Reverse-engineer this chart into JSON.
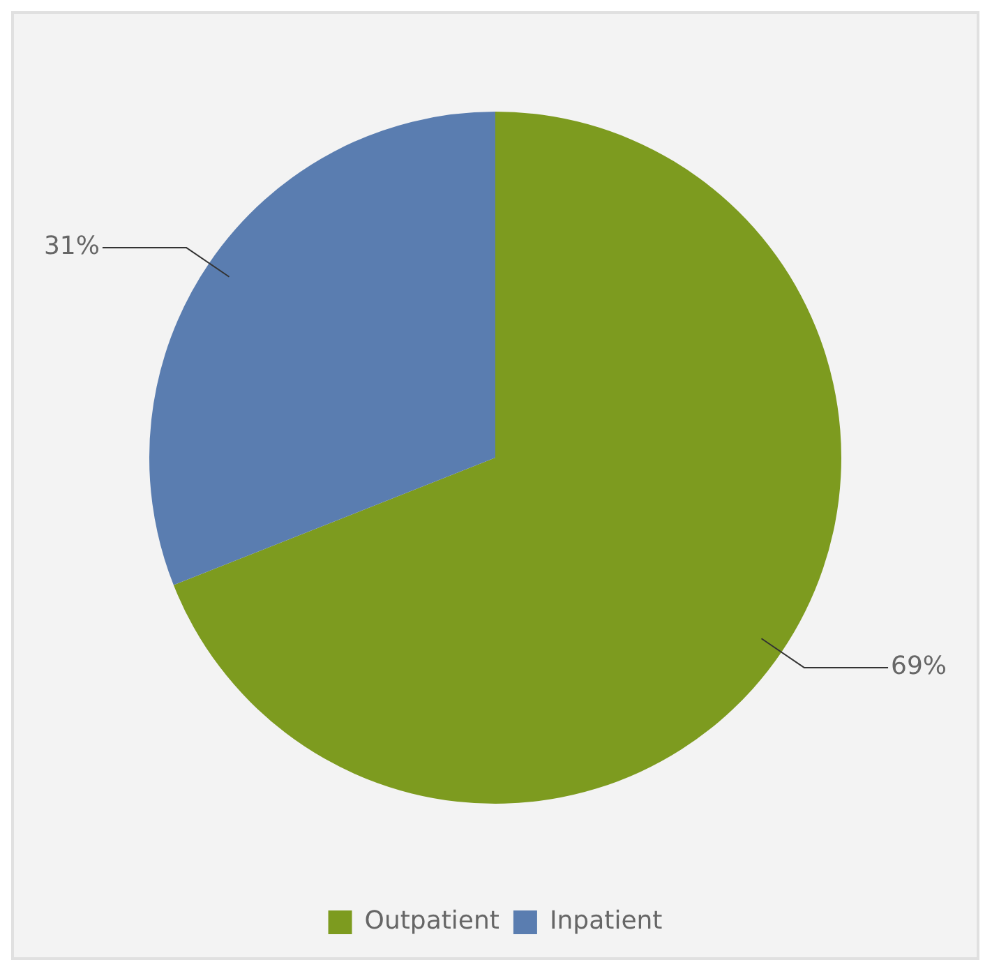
{
  "chart_data": {
    "type": "pie",
    "categories": [
      "Outpatient",
      "Inpatient"
    ],
    "values": [
      69,
      31
    ],
    "colors": [
      "#7d9b1f",
      "#5a7db0"
    ],
    "value_labels": [
      "69%",
      "31%"
    ],
    "legend": "bottom"
  }
}
